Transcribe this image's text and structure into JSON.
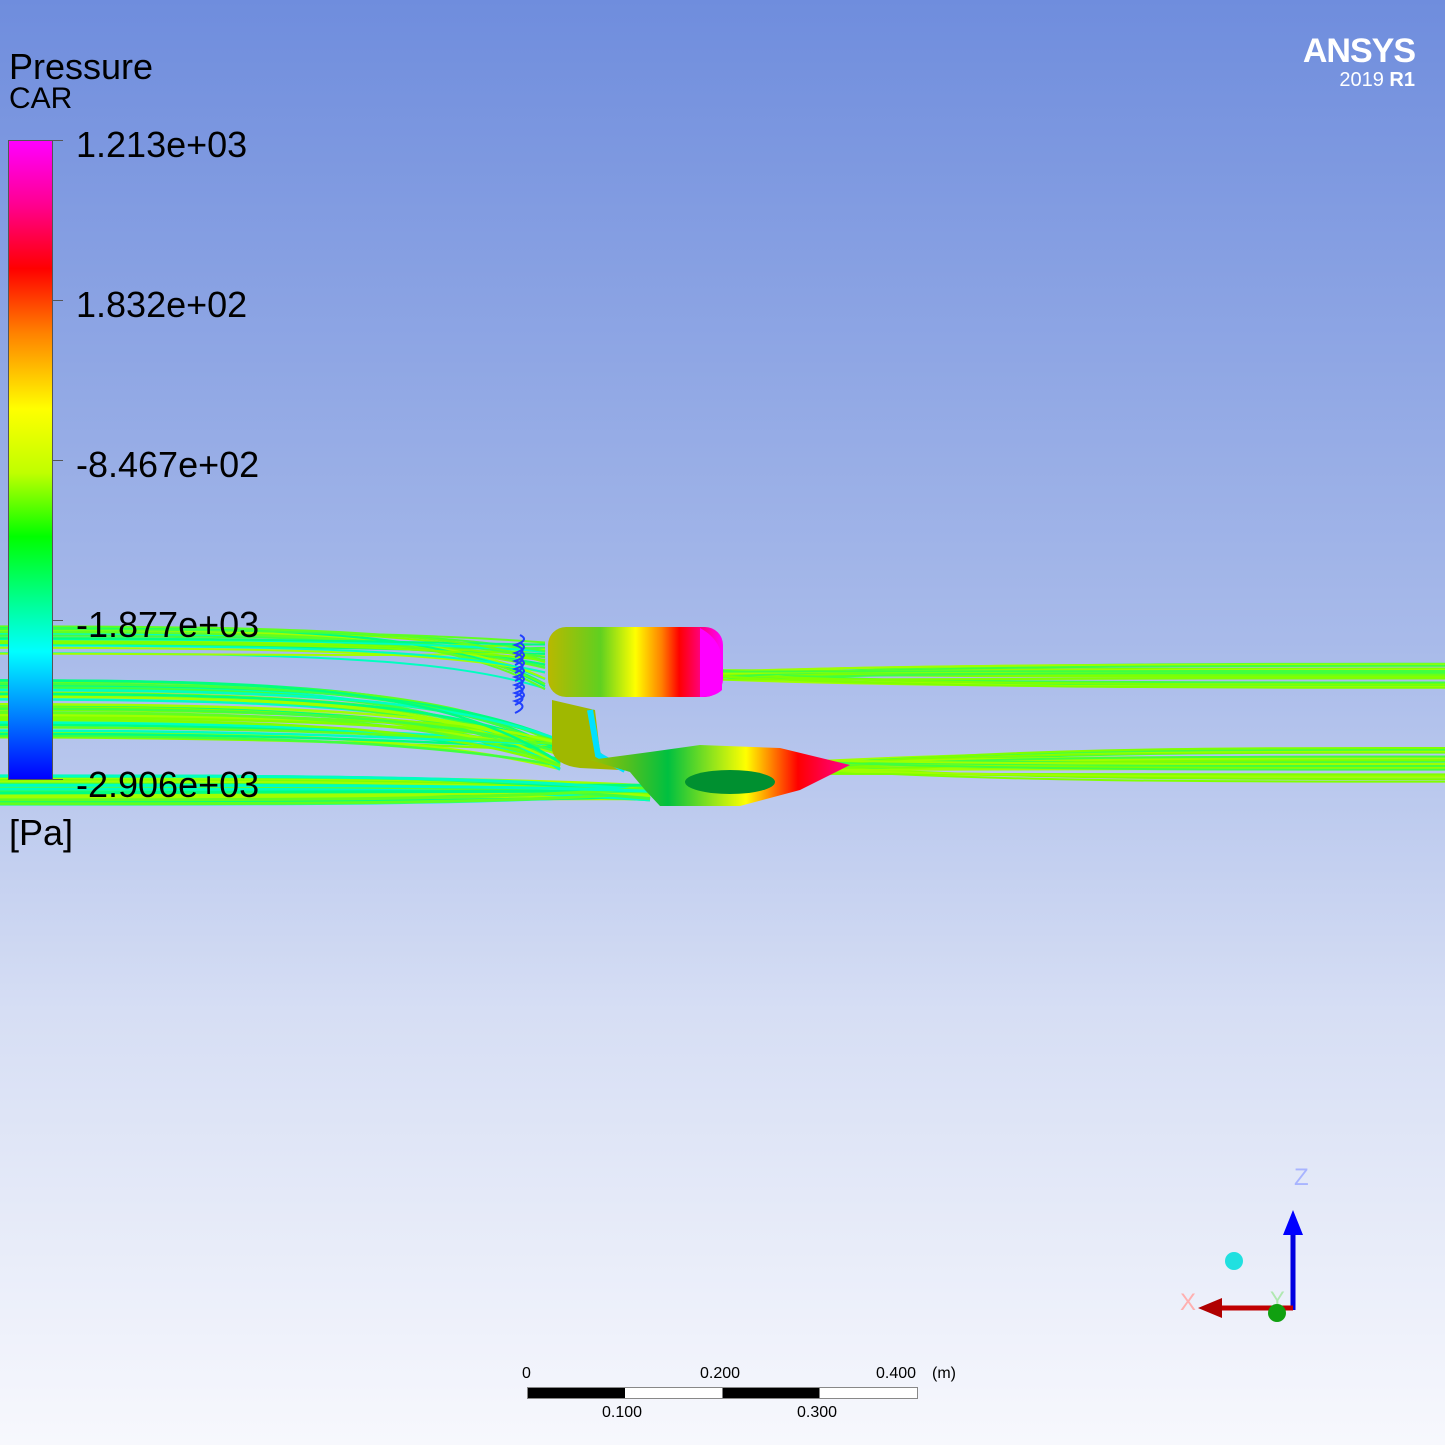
{
  "legend": {
    "title": "Pressure",
    "subtitle": "CAR",
    "unit": "[Pa]",
    "ticks": [
      "1.213e+03",
      "1.832e+02",
      "-8.467e+02",
      "-1.877e+03",
      "-2.906e+03"
    ],
    "colormap": [
      "#ff00ff",
      "#ff0000",
      "#ff8000",
      "#ffff00",
      "#00ff00",
      "#00ffff",
      "#0000ff"
    ]
  },
  "logo": {
    "brand": "ANSYS",
    "version": "2019",
    "release": "R1"
  },
  "triad": {
    "x_label": "X",
    "y_label": "Y",
    "z_label": "Z"
  },
  "scale_bar": {
    "top_labels": [
      "0",
      "0.200",
      "0.400"
    ],
    "bottom_labels": [
      "0.100",
      "0.300"
    ],
    "unit": "(m)"
  }
}
